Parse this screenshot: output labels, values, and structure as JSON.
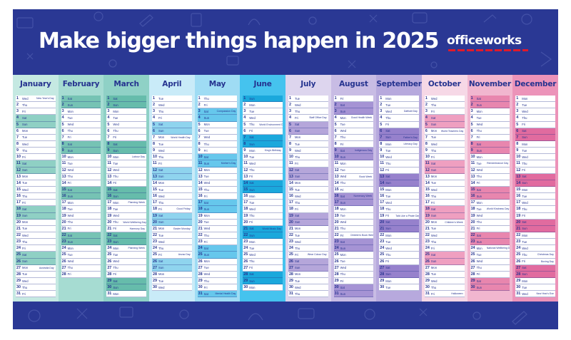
{
  "title": "Make bigger things happen in 2025",
  "brand": {
    "name": "officeworks",
    "accent": "#e01a2b"
  },
  "colors": {
    "background": "#2a3894",
    "text": "#25338f"
  },
  "months": [
    {
      "name": "January",
      "start": 3,
      "days": 31,
      "bg": "#c5e9e2",
      "shade": "#8fd0c4",
      "events": {
        "1": "New Year's Day",
        "27": "Australia Day"
      }
    },
    {
      "name": "February",
      "start": 6,
      "days": 28,
      "bg": "#a6dcd2",
      "shade": "#76c3b4",
      "events": {}
    },
    {
      "name": "March",
      "start": 6,
      "days": 31,
      "bg": "#8fd1c6",
      "shade": "#66bcab",
      "events": {
        "10": "Labour Day",
        "17": "Planning Week",
        "20": "World Wellbeing Day",
        "21": "Harmony Day",
        "24": "Planning Week"
      }
    },
    {
      "name": "April",
      "start": 2,
      "days": 30,
      "bg": "#c9ebf8",
      "shade": "#8fd4ee",
      "events": {
        "7": "World Health Day",
        "18": "Good Friday",
        "21": "Easter Monday",
        "25": "Anzac Day"
      }
    },
    {
      "name": "May",
      "start": 4,
      "days": 31,
      "bg": "#9fdcf4",
      "shade": "#66c7ec",
      "events": {
        "3": "Compassion Day",
        "11": "Mother's Day",
        "31": "Mental Health Day"
      }
    },
    {
      "name": "June",
      "start": 0,
      "days": 30,
      "bg": "#45c3ee",
      "shade": "#1ba8dc",
      "events": {
        "5": "World Environment Day",
        "9": "King's Birthday",
        "21": "World Music Day"
      }
    },
    {
      "name": "July",
      "start": 2,
      "days": 31,
      "bg": "#ddd5ee",
      "shade": "#b5a6da",
      "events": {
        "4": "Staff Office Day",
        "25": "Wear Colour Day"
      }
    },
    {
      "name": "August",
      "start": 5,
      "days": 31,
      "bg": "#c8bce4",
      "shade": "#a593d4",
      "events": {
        "4": "Good Health Week",
        "9": "Indigenous Day",
        "13": "Book Week",
        "16": "Numeracy Week",
        "22": "Children's Book Week"
      }
    },
    {
      "name": "September",
      "start": 1,
      "days": 30,
      "bg": "#b7a9dd",
      "shade": "#9681cc",
      "events": {
        "3": "Daffodil Day",
        "7": "Father's Day",
        "8": "Literacy Day",
        "19": "Talk Like a Pirate Day"
      }
    },
    {
      "name": "October",
      "start": 3,
      "days": 31,
      "bg": "#f6d8e6",
      "shade": "#ef9fc0",
      "events": {
        "6": "World Teachers Day",
        "20": "Children's Week",
        "31": "Halloween"
      }
    },
    {
      "name": "November",
      "start": 6,
      "days": 30,
      "bg": "#f1b6cf",
      "shade": "#e886ae",
      "events": {
        "11": "Remembrance Day",
        "18": "World Kindness Day",
        "24": "National Wellbeing Day"
      }
    },
    {
      "name": "December",
      "start": 1,
      "days": 31,
      "bg": "#ec93b9",
      "shade": "#e16b9f",
      "events": {
        "25": "Christmas Day",
        "26": "Boxing Day",
        "31": "New Year's Eve"
      }
    }
  ],
  "weekdays": [
    "Sun",
    "Mon",
    "Tue",
    "Wed",
    "Thu",
    "Fri",
    "Sat"
  ]
}
